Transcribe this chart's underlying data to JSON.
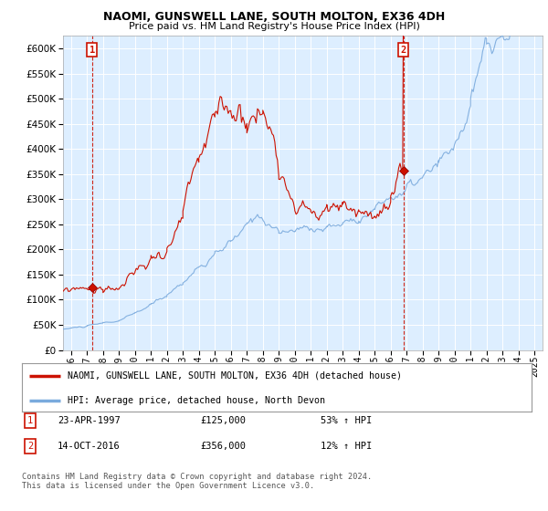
{
  "title": "NAOMI, GUNSWELL LANE, SOUTH MOLTON, EX36 4DH",
  "subtitle": "Price paid vs. HM Land Registry's House Price Index (HPI)",
  "ytick_vals": [
    0,
    50000,
    100000,
    150000,
    200000,
    250000,
    300000,
    350000,
    400000,
    450000,
    500000,
    550000,
    600000
  ],
  "ylim": [
    0,
    625000
  ],
  "xlim_start": 1995.5,
  "xlim_end": 2025.5,
  "sale1_x": 1997.31,
  "sale1_y": 125000,
  "sale1_label": "1",
  "sale1_date": "23-APR-1997",
  "sale1_price": "£125,000",
  "sale1_hpi": "53% ↑ HPI",
  "sale2_x": 2016.79,
  "sale2_y": 356000,
  "sale2_label": "2",
  "sale2_date": "14-OCT-2016",
  "sale2_price": "£356,000",
  "sale2_hpi": "12% ↑ HPI",
  "hpi_line_color": "#7aaadd",
  "price_line_color": "#cc1100",
  "vline_color": "#cc1100",
  "chart_bg_color": "#ddeeff",
  "legend_label_price": "NAOMI, GUNSWELL LANE, SOUTH MOLTON, EX36 4DH (detached house)",
  "legend_label_hpi": "HPI: Average price, detached house, North Devon",
  "footer": "Contains HM Land Registry data © Crown copyright and database right 2024.\nThis data is licensed under the Open Government Licence v3.0.",
  "background_color": "#ffffff",
  "grid_color": "#ffffff"
}
